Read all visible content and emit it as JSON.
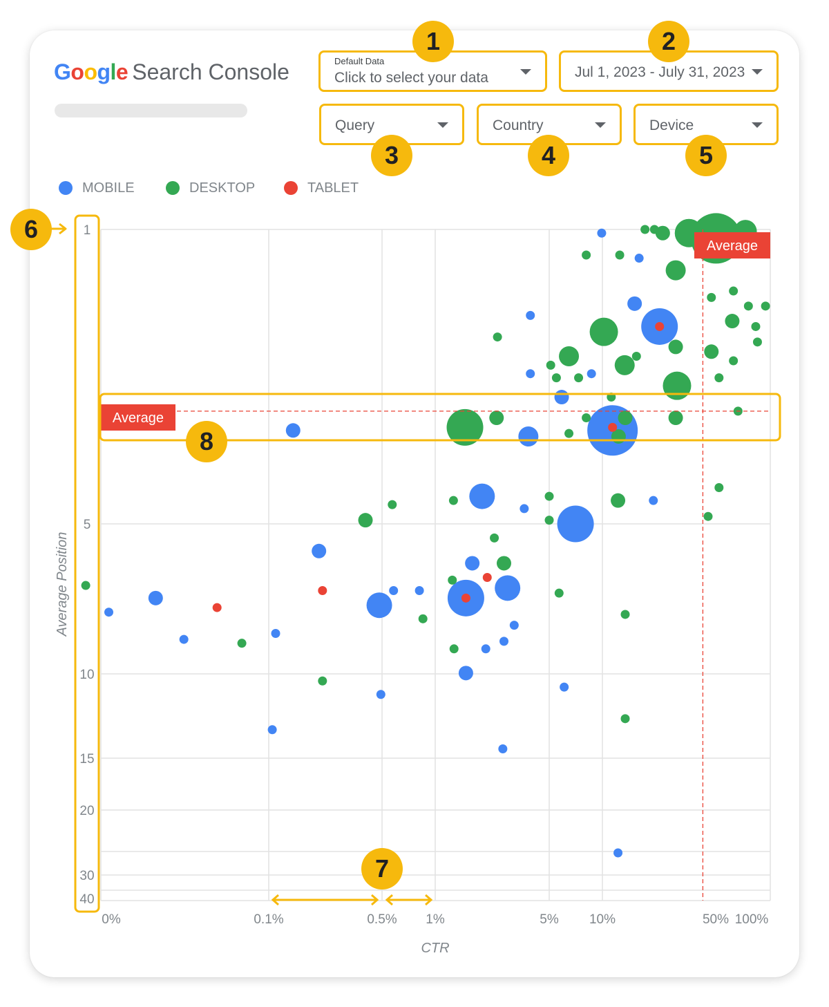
{
  "header": {
    "logo_letters": [
      {
        "ch": "G",
        "color": "#4285f4"
      },
      {
        "ch": "o",
        "color": "#ea4335"
      },
      {
        "ch": "o",
        "color": "#fbbc05"
      },
      {
        "ch": "g",
        "color": "#4285f4"
      },
      {
        "ch": "l",
        "color": "#34a853"
      },
      {
        "ch": "e",
        "color": "#ea4335"
      }
    ],
    "product_name": "Search Console"
  },
  "controls": {
    "data_source": {
      "small_label": "Default Data",
      "value": "Click to select your data"
    },
    "date_range": {
      "value": "Jul 1, 2023 - July 31, 2023"
    },
    "query": {
      "value": "Query"
    },
    "country": {
      "value": "Country"
    },
    "device": {
      "value": "Device"
    }
  },
  "callouts": [
    "1",
    "2",
    "3",
    "4",
    "5",
    "6",
    "7",
    "8"
  ],
  "colors": {
    "mobile": "#4285f4",
    "desktop": "#34a853",
    "tablet": "#ea4335",
    "highlight": "#f6b90d",
    "average": "#ea4335"
  },
  "chart_data": {
    "type": "scatter",
    "subtype": "bubble",
    "xlabel": "CTR",
    "ylabel": "Average Position",
    "x_scale": "log",
    "y_scale": "log",
    "y_inverted": true,
    "x_ticks": [
      "0%",
      "0.1%",
      "0.5%",
      "1%",
      "5%",
      "10%",
      "50%",
      "100%"
    ],
    "y_ticks": [
      "1",
      "5",
      "10",
      "15",
      "20",
      "30",
      "40"
    ],
    "legend": [
      "MOBILE",
      "DESKTOP",
      "TABLET"
    ],
    "legend_position": "top-left",
    "grid": true,
    "average_label": "Average",
    "average": {
      "ctr": 40,
      "position": 2.7
    },
    "series": [
      {
        "name": "MOBILE",
        "points": [
          {
            "x": 0.011,
            "y": 8.1,
            "s": 3
          },
          {
            "x": 0.021,
            "y": 7.5,
            "s": 5
          },
          {
            "x": 0.031,
            "y": 9.4,
            "s": 3
          },
          {
            "x": 0.11,
            "y": 9.1,
            "s": 3
          },
          {
            "x": 0.14,
            "y": 3.0,
            "s": 5
          },
          {
            "x": 0.2,
            "y": 5.8,
            "s": 5
          },
          {
            "x": 0.46,
            "y": 7.8,
            "s": 9
          },
          {
            "x": 0.56,
            "y": 7.2,
            "s": 3
          },
          {
            "x": 0.8,
            "y": 7.2,
            "s": 3
          },
          {
            "x": 0.105,
            "y": 15.4,
            "s": 3
          },
          {
            "x": 0.47,
            "y": 12.7,
            "s": 3
          },
          {
            "x": 1.9,
            "y": 4.3,
            "s": 9
          },
          {
            "x": 1.66,
            "y": 6.2,
            "s": 5
          },
          {
            "x": 1.52,
            "y": 7.5,
            "s": 13
          },
          {
            "x": 2.7,
            "y": 7.1,
            "s": 9
          },
          {
            "x": 2.0,
            "y": 9.9,
            "s": 3
          },
          {
            "x": 2.57,
            "y": 9.5,
            "s": 3
          },
          {
            "x": 2.96,
            "y": 8.7,
            "s": 3
          },
          {
            "x": 1.52,
            "y": 11.3,
            "s": 5
          },
          {
            "x": 2.53,
            "y": 17.1,
            "s": 3
          },
          {
            "x": 3.6,
            "y": 3.1,
            "s": 7
          },
          {
            "x": 3.4,
            "y": 4.6,
            "s": 3
          },
          {
            "x": 6.9,
            "y": 5.0,
            "s": 13
          },
          {
            "x": 5.7,
            "y": 2.5,
            "s": 5
          },
          {
            "x": 3.7,
            "y": 1.6,
            "s": 3
          },
          {
            "x": 3.7,
            "y": 2.2,
            "s": 3
          },
          {
            "x": 8.6,
            "y": 2.2,
            "s": 3
          },
          {
            "x": 11.5,
            "y": 3.0,
            "s": 18
          },
          {
            "x": 5.9,
            "y": 12.2,
            "s": 3
          },
          {
            "x": 12.4,
            "y": 30.2,
            "s": 3
          },
          {
            "x": 9.9,
            "y": 1.02,
            "s": 3
          },
          {
            "x": 15.6,
            "y": 1.5,
            "s": 5
          },
          {
            "x": 16.6,
            "y": 1.17,
            "s": 3
          },
          {
            "x": 22.0,
            "y": 1.7,
            "s": 13
          },
          {
            "x": 20.2,
            "y": 4.4,
            "s": 3
          }
        ]
      },
      {
        "name": "DESKTOP",
        "points": [
          {
            "x": 0.008,
            "y": 7.0,
            "s": 3
          },
          {
            "x": 0.069,
            "y": 9.6,
            "s": 3
          },
          {
            "x": 0.21,
            "y": 11.8,
            "s": 3
          },
          {
            "x": 0.38,
            "y": 4.9,
            "s": 5
          },
          {
            "x": 0.55,
            "y": 4.5,
            "s": 3
          },
          {
            "x": 0.84,
            "y": 8.4,
            "s": 3
          },
          {
            "x": 1.28,
            "y": 4.4,
            "s": 3
          },
          {
            "x": 1.26,
            "y": 6.8,
            "s": 3
          },
          {
            "x": 1.29,
            "y": 9.9,
            "s": 3
          },
          {
            "x": 1.5,
            "y": 2.95,
            "s": 13
          },
          {
            "x": 2.35,
            "y": 1.8,
            "s": 3
          },
          {
            "x": 2.32,
            "y": 2.8,
            "s": 5
          },
          {
            "x": 2.25,
            "y": 5.4,
            "s": 3
          },
          {
            "x": 2.57,
            "y": 6.2,
            "s": 5
          },
          {
            "x": 4.9,
            "y": 2.1,
            "s": 3
          },
          {
            "x": 5.3,
            "y": 2.25,
            "s": 3
          },
          {
            "x": 7.2,
            "y": 2.25,
            "s": 3
          },
          {
            "x": 4.8,
            "y": 4.3,
            "s": 3
          },
          {
            "x": 4.8,
            "y": 4.9,
            "s": 3
          },
          {
            "x": 6.3,
            "y": 3.05,
            "s": 3
          },
          {
            "x": 5.5,
            "y": 7.3,
            "s": 3
          },
          {
            "x": 6.3,
            "y": 2.0,
            "s": 7
          },
          {
            "x": 8.0,
            "y": 1.15,
            "s": 3
          },
          {
            "x": 10.2,
            "y": 1.75,
            "s": 10
          },
          {
            "x": 11.3,
            "y": 2.5,
            "s": 3
          },
          {
            "x": 12.7,
            "y": 1.15,
            "s": 3
          },
          {
            "x": 13.6,
            "y": 2.1,
            "s": 7
          },
          {
            "x": 16.0,
            "y": 2.0,
            "s": 3
          },
          {
            "x": 8.0,
            "y": 2.8,
            "s": 3
          },
          {
            "x": 12.5,
            "y": 3.1,
            "s": 5
          },
          {
            "x": 12.4,
            "y": 4.4,
            "s": 5
          },
          {
            "x": 13.7,
            "y": 2.8,
            "s": 5
          },
          {
            "x": 13.7,
            "y": 8.2,
            "s": 3
          },
          {
            "x": 13.7,
            "y": 14.5,
            "s": 3
          },
          {
            "x": 18.0,
            "y": 1.0,
            "s": 3
          },
          {
            "x": 20.5,
            "y": 1.0,
            "s": 3
          },
          {
            "x": 23.0,
            "y": 1.02,
            "s": 5
          },
          {
            "x": 27.5,
            "y": 1.25,
            "s": 7
          },
          {
            "x": 27.5,
            "y": 1.9,
            "s": 5
          },
          {
            "x": 28.0,
            "y": 2.35,
            "s": 10
          },
          {
            "x": 27.5,
            "y": 2.8,
            "s": 5
          },
          {
            "x": 33.0,
            "y": 1.02,
            "s": 10
          },
          {
            "x": 43.0,
            "y": 4.8,
            "s": 3
          },
          {
            "x": 45.0,
            "y": 1.45,
            "s": 3
          },
          {
            "x": 45.0,
            "y": 1.95,
            "s": 5
          },
          {
            "x": 48.0,
            "y": 1.05,
            "s": 18
          },
          {
            "x": 50.0,
            "y": 2.25,
            "s": 3
          },
          {
            "x": 50.0,
            "y": 4.1,
            "s": 3
          },
          {
            "x": 61.0,
            "y": 1.4,
            "s": 3
          },
          {
            "x": 60.0,
            "y": 1.65,
            "s": 5
          },
          {
            "x": 61.0,
            "y": 2.05,
            "s": 3
          },
          {
            "x": 65.0,
            "y": 2.7,
            "s": 3
          },
          {
            "x": 72.0,
            "y": 1.01,
            "s": 8
          },
          {
            "x": 75.0,
            "y": 1.52,
            "s": 3
          },
          {
            "x": 83.0,
            "y": 1.7,
            "s": 3
          },
          {
            "x": 85.0,
            "y": 1.85,
            "s": 3
          },
          {
            "x": 95.0,
            "y": 1.52,
            "s": 3
          }
        ]
      },
      {
        "name": "TABLET",
        "points": [
          {
            "x": 0.049,
            "y": 7.9,
            "s": 3
          },
          {
            "x": 0.21,
            "y": 7.2,
            "s": 3
          },
          {
            "x": 1.52,
            "y": 7.5,
            "s": 3
          },
          {
            "x": 2.04,
            "y": 6.7,
            "s": 3
          },
          {
            "x": 11.5,
            "y": 2.95,
            "s": 3
          },
          {
            "x": 22.0,
            "y": 1.7,
            "s": 3
          }
        ]
      }
    ]
  }
}
